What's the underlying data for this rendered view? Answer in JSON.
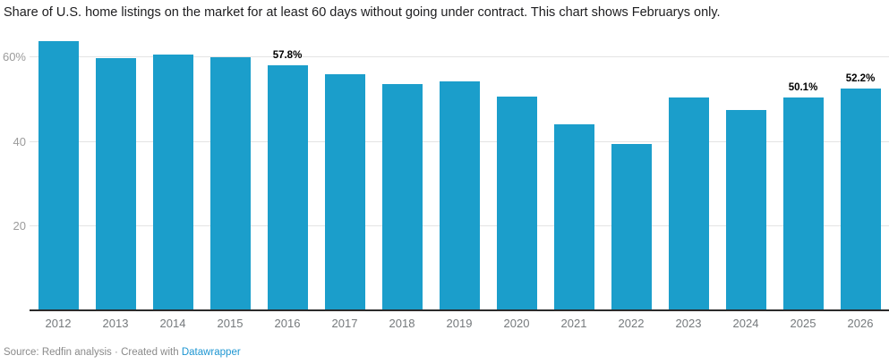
{
  "title": "Share of U.S. home listings on the market for at least 60 days without going under contract. This chart shows Februarys only.",
  "footer": {
    "source": "Source: Redfin analysis",
    "separator": "·",
    "created": "Created with",
    "link_label": "Datawrapper"
  },
  "colors": {
    "bar": "#1b9ecb",
    "grid": "#e4e4e4",
    "baseline": "#2b2b2b",
    "axis_label": "#9b9b9b",
    "x_label": "#75797c",
    "value_label": "#000000",
    "footer_text": "#8a8a8a",
    "link": "#1e96d2"
  },
  "chart_data": {
    "type": "bar",
    "title": "Share of U.S. home listings on the market for at least 60 days without going under contract. This chart shows Februarys only.",
    "categories": [
      "2012",
      "2013",
      "2014",
      "2015",
      "2016",
      "2017",
      "2018",
      "2019",
      "2020",
      "2021",
      "2022",
      "2023",
      "2024",
      "2025",
      "2026"
    ],
    "values": [
      63.5,
      59.4,
      60.3,
      59.6,
      57.8,
      55.6,
      53.3,
      53.8,
      50.3,
      43.8,
      39.0,
      50.2,
      47.1,
      50.1,
      52.2
    ],
    "unit": "%",
    "bar_labels": {
      "2016": "57.8%",
      "2025": "50.1%",
      "2026": "52.2%"
    },
    "y_ticks": [
      {
        "value": 20,
        "label": "20"
      },
      {
        "value": 40,
        "label": "40"
      },
      {
        "value": 60,
        "label": "60%"
      }
    ],
    "ylim": [
      0,
      65.1
    ],
    "grid": true,
    "legend": "none",
    "xlabel": "",
    "ylabel": ""
  }
}
